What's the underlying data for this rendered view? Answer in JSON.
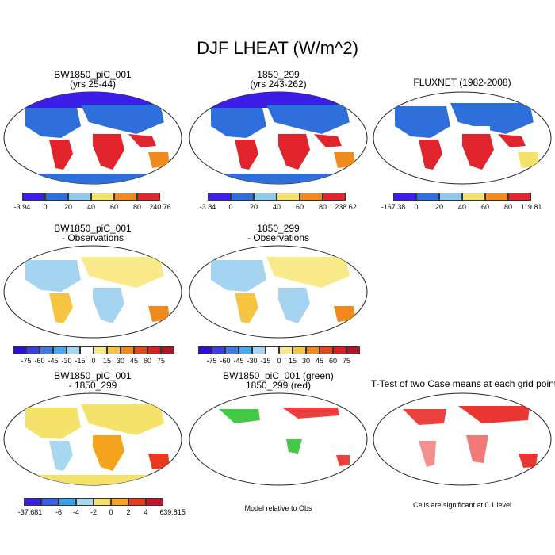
{
  "title": "DJF LHEAT (W/m^2)",
  "row1": [
    {
      "title1": "BW1850_piC_001",
      "title2": "(yrs 25-44)",
      "min": "-3.94",
      "max": "240.76",
      "ticks": [
        "0",
        "20",
        "40",
        "60",
        "80"
      ]
    },
    {
      "title1": "1850_299",
      "title2": "(yrs 243-262)",
      "min": "-3.84",
      "max": "238.62",
      "ticks": [
        "0",
        "20",
        "40",
        "60",
        "80"
      ]
    },
    {
      "title1": "FLUXNET (1982-2008)",
      "title2": "",
      "min": "-167.38",
      "max": "119.81",
      "ticks": [
        "0",
        "20",
        "40",
        "60",
        "80"
      ]
    }
  ],
  "row2": [
    {
      "title1": "BW1850_piC_001",
      "title2": "- Observations"
    },
    {
      "title1": "1850_299",
      "title2": "- Observations"
    }
  ],
  "diff_ticks": [
    "-75",
    "-60",
    "-45",
    "-30",
    "-15",
    "0",
    "15",
    "30",
    "45",
    "60",
    "75"
  ],
  "row3": [
    {
      "title1": "BW1850_piC_001",
      "title2": "- 1850_299",
      "min": "-37.681",
      "max": "39.815",
      "ticks": [
        "-6",
        "-4",
        "-2",
        "0",
        "2",
        "4",
        "6"
      ]
    },
    {
      "title1": "BW1850_piC_001 (green)",
      "title2": "1850_299 (red)"
    },
    {
      "title1": "T-Test of two Case means at each grid point",
      "title2": ""
    }
  ],
  "note_model": "Model relative to Obs",
  "note_cells": "Cells are significant at 0.1 level",
  "colors": {
    "abs": [
      "#3b1ee8",
      "#2f6fdc",
      "#8ec8ea",
      "#f5e26b",
      "#f08a1c",
      "#e2242c",
      "#b8142c"
    ],
    "diff": [
      "#2a0fd8",
      "#3a3ce8",
      "#3f7ce8",
      "#46aaf0",
      "#a4d4f0",
      "#ffffff",
      "#f8ea8a",
      "#f5c442",
      "#f08a1c",
      "#e24a1c",
      "#d81e1e",
      "#b01428"
    ],
    "small": [
      "#3a1ee8",
      "#3a5ee8",
      "#3aa0f0",
      "#a8d8f0",
      "#f5e26b",
      "#f5a21c",
      "#e83a1c",
      "#c8142c"
    ]
  }
}
